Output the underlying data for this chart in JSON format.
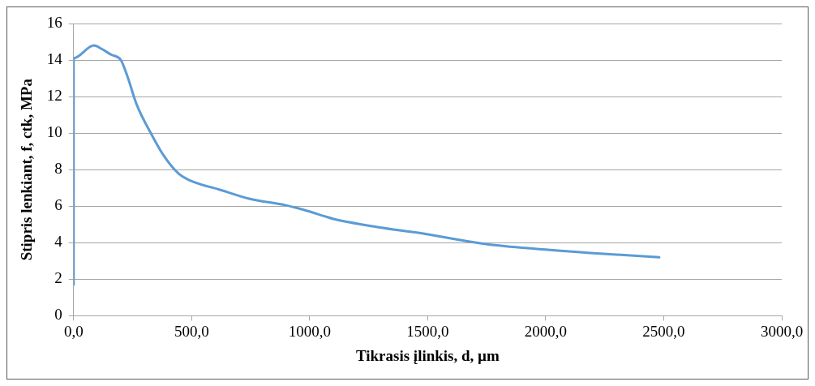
{
  "chart_data": {
    "type": "line",
    "xlabel": "Tikrasis įlinkis, d, µm",
    "ylabel": "Stipris lenkiant, f, ctk, MPa",
    "x": [
      0,
      0,
      86,
      120,
      158,
      200,
      228,
      266,
      329,
      380,
      443,
      494,
      620,
      747,
      899,
      975,
      1063,
      1101,
      1291,
      1481,
      1734,
      1924,
      2177,
      2481
    ],
    "series": [
      {
        "color": "#5b9bd5",
        "values": [
          1.7,
          14.1,
          14.8,
          14.6,
          14.3,
          14.0,
          13.1,
          11.6,
          9.95,
          8.8,
          7.8,
          7.4,
          6.9,
          6.4,
          6.05,
          5.8,
          5.45,
          5.3,
          4.85,
          4.5,
          3.95,
          3.7,
          3.45,
          3.2
        ]
      }
    ],
    "xlim": [
      0,
      3000
    ],
    "xticks": [
      {
        "value": 0,
        "label": "0,0"
      },
      {
        "value": 500,
        "label": "500,0"
      },
      {
        "value": 1000,
        "label": "1000,0"
      },
      {
        "value": 1500,
        "label": "1500,0"
      },
      {
        "value": 2000,
        "label": "2000,0"
      },
      {
        "value": 2500,
        "label": "2500,0"
      },
      {
        "value": 3000,
        "label": "3000,0"
      }
    ],
    "ylim": [
      0,
      16
    ],
    "yticks": [
      0,
      2,
      4,
      6,
      8,
      10,
      12,
      14,
      16
    ],
    "grid": "y",
    "legend": false,
    "marker": "none",
    "line_style": "solid"
  }
}
